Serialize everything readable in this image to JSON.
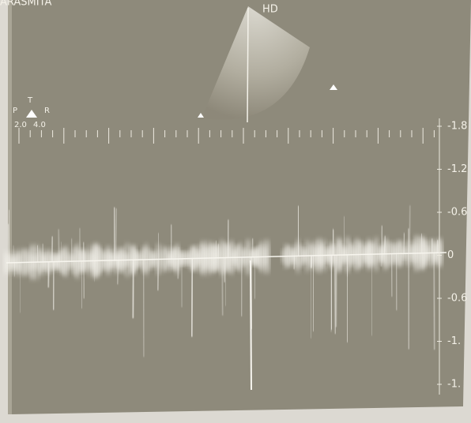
{
  "header": {
    "patient": "ARASMITA",
    "probe_label": "HD"
  },
  "gate": {
    "p": "P",
    "t": "T",
    "r": "R",
    "left_value": "2.0",
    "right_value": "4.0"
  },
  "scale": {
    "labels": [
      "-1.8",
      "-1.2",
      "-0.6",
      "0",
      "-0.6",
      "-1.",
      "-1."
    ]
  }
}
